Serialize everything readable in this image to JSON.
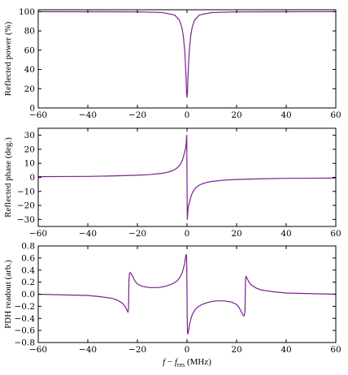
{
  "chart_data": [
    {
      "type": "line",
      "title": "",
      "xlabel": "",
      "ylabel": "Reflected power (%)",
      "xlim": [
        -60,
        60
      ],
      "ylim": [
        0,
        102
      ],
      "xticks": [
        -60,
        -40,
        -20,
        0,
        20,
        40,
        60
      ],
      "yticks": [
        0,
        20,
        40,
        60,
        80,
        100
      ],
      "ytick_labels": [
        "0",
        "20",
        "40",
        "60",
        "80",
        "100"
      ],
      "show_xtick_labels": true,
      "grid": false,
      "series": [
        {
          "color": "#7b1f8f",
          "x": [
            -60,
            -40,
            -20,
            -10,
            -5,
            -3,
            -2,
            -1.5,
            -1,
            -0.7,
            -0.4,
            -0.2,
            0,
            0.2,
            0.4,
            0.7,
            1,
            1.5,
            2,
            3,
            5,
            10,
            20,
            40,
            60
          ],
          "y": [
            100,
            99.9,
            99.8,
            99.1,
            96.6,
            91.1,
            82.8,
            74.9,
            61.9,
            49.9,
            32.2,
            16.9,
            11,
            16.9,
            32.2,
            49.9,
            61.9,
            74.9,
            82.8,
            91.1,
            96.6,
            99.1,
            99.8,
            99.9,
            100
          ]
        }
      ]
    },
    {
      "type": "line",
      "title": "",
      "xlabel": "",
      "ylabel": "Reflected phase (deg.)",
      "xlim": [
        -60,
        60
      ],
      "ylim": [
        -35,
        35
      ],
      "xticks": [
        -60,
        -40,
        -20,
        0,
        20,
        40,
        60
      ],
      "yticks": [
        -30,
        -20,
        -10,
        0,
        10,
        20,
        30
      ],
      "ytick_labels": [
        "−30",
        "−20",
        "−10",
        "0",
        "10",
        "20",
        "30"
      ],
      "show_xtick_labels": true,
      "grid": false,
      "series": [
        {
          "color": "#7b1f8f",
          "x": [
            -60,
            -50,
            -40,
            -30,
            -20,
            -15,
            -10,
            -8,
            -6,
            -5,
            -4,
            -3,
            -2.5,
            -2,
            -1.5,
            -1.2,
            -1,
            -0.8,
            -0.6,
            -0.5,
            -0.4,
            -0.3,
            -0.2,
            -0.1,
            0,
            0.1,
            0.2,
            0.3,
            0.4,
            0.5,
            0.6,
            0.8,
            1,
            1.2,
            1.5,
            2,
            2.5,
            3,
            4,
            5,
            6,
            8,
            10,
            15,
            20,
            30,
            40,
            50,
            60
          ],
          "y": [
            0.5,
            0.6,
            0.7,
            1.0,
            1.5,
            2.0,
            2.9,
            3.6,
            4.7,
            5.5,
            6.7,
            8.4,
            9.8,
            11.7,
            14.3,
            16.3,
            17.6,
            19.1,
            20.6,
            21.4,
            22.9,
            25.0,
            27.8,
            30.0,
            0,
            -30.0,
            -27.8,
            -25.0,
            -22.9,
            -21.4,
            -20.6,
            -19.1,
            -17.6,
            -16.3,
            -14.3,
            -11.7,
            -9.8,
            -8.4,
            -6.7,
            -5.5,
            -4.7,
            -3.6,
            -2.9,
            -2.0,
            -1.5,
            -1.0,
            -0.7,
            -0.6,
            -0.5
          ]
        }
      ]
    },
    {
      "type": "line",
      "title": "",
      "xlabel": "f − f_res (MHz)",
      "ylabel": "PDH readout (arb.)",
      "xlim": [
        -60,
        60
      ],
      "ylim": [
        -0.8,
        0.8
      ],
      "xticks": [
        -60,
        -40,
        -20,
        0,
        20,
        40,
        60
      ],
      "yticks": [
        -0.8,
        -0.6,
        -0.4,
        -0.2,
        0.0,
        0.2,
        0.4,
        0.6,
        0.8
      ],
      "ytick_labels": [
        "−0.8",
        "−0.6",
        "−0.4",
        "−0.2",
        "0.0",
        "0.2",
        "0.4",
        "0.6",
        "0.8"
      ],
      "show_xtick_labels": true,
      "grid": false,
      "series": [
        {
          "color": "#7b1f8f",
          "x": [
            -60,
            -50,
            -40,
            -35,
            -30,
            -28,
            -26,
            -25,
            -24.5,
            -24,
            -23.8,
            -23.6,
            -23.5,
            -23.4,
            -23.2,
            -23,
            -22.5,
            -22,
            -21,
            -20,
            -18,
            -15,
            -12,
            -10,
            -8,
            -6,
            -4,
            -3,
            -2,
            -1.5,
            -1,
            -0.7,
            -0.5,
            -0.3,
            -0.2,
            -0.1,
            0,
            0.1,
            0.2,
            0.3,
            0.5,
            0.7,
            1,
            1.5,
            2,
            3,
            4,
            6,
            8,
            10,
            12,
            15,
            18,
            20,
            21,
            22,
            22.5,
            23,
            23.2,
            23.4,
            23.5,
            23.6,
            23.8,
            24,
            24.5,
            25,
            26,
            28,
            30,
            35,
            40,
            50,
            60
          ],
          "y": [
            0.0,
            -0.01,
            -0.02,
            -0.04,
            -0.07,
            -0.1,
            -0.15,
            -0.2,
            -0.24,
            -0.28,
            -0.3,
            -0.25,
            0.0,
            0.25,
            0.33,
            0.36,
            0.34,
            0.3,
            0.22,
            0.17,
            0.13,
            0.11,
            0.11,
            0.12,
            0.14,
            0.17,
            0.22,
            0.27,
            0.35,
            0.42,
            0.5,
            0.58,
            0.63,
            0.66,
            0.62,
            0.45,
            0.0,
            -0.45,
            -0.62,
            -0.66,
            -0.63,
            -0.58,
            -0.5,
            -0.42,
            -0.35,
            -0.27,
            -0.22,
            -0.17,
            -0.14,
            -0.12,
            -0.11,
            -0.11,
            -0.13,
            -0.17,
            -0.22,
            -0.3,
            -0.34,
            -0.36,
            -0.33,
            -0.25,
            0.0,
            0.25,
            0.3,
            0.28,
            0.24,
            0.2,
            0.15,
            0.1,
            0.07,
            0.04,
            0.02,
            0.01,
            0.0
          ]
        }
      ]
    }
  ]
}
